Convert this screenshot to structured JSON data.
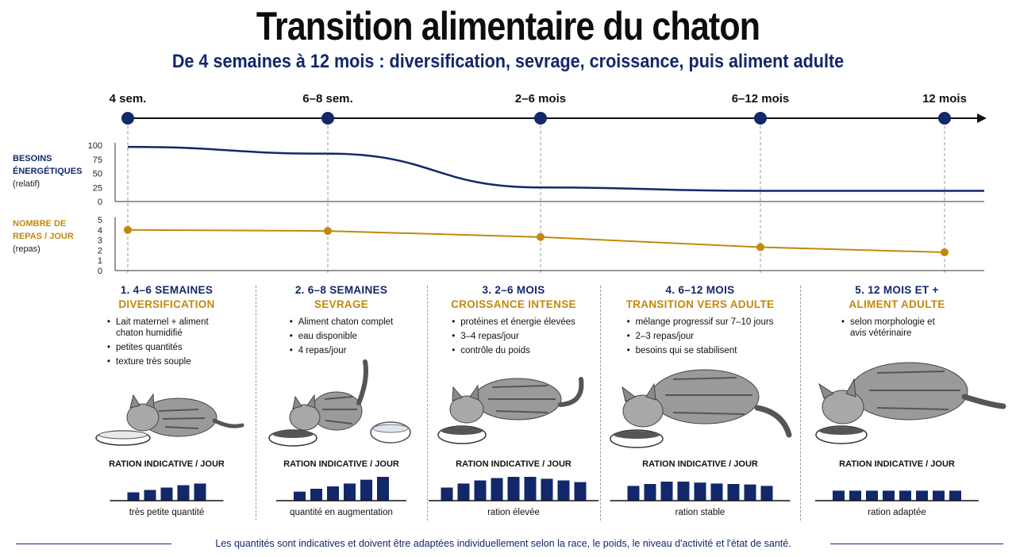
{
  "title": "Transition alimentaire du chaton",
  "subtitle": "De 4 semaines à 12 mois : diversification, sevrage, croissance, puis aliment adulte",
  "colors": {
    "navy": "#13276b",
    "gold": "#c2880e",
    "grid": "#9a9a9a"
  },
  "timeline": {
    "milestones": [
      "4 sem.",
      "6–8 sem.",
      "2–6 mois",
      "6–12 mois",
      "12 mois"
    ]
  },
  "chart_data": [
    {
      "type": "line",
      "title": "",
      "ylabel": "BESOINS ÉNERGÉTIQUES",
      "ylabel_unit": "(relatif)",
      "ylim": [
        0,
        100
      ],
      "yticks": [
        0,
        25,
        50,
        75,
        100
      ],
      "x": [
        "4 sem.",
        "6–8 sem.",
        "2–6 mois",
        "6–12 mois",
        "12 mois"
      ],
      "series": [
        {
          "values": [
            97,
            85,
            25,
            19,
            19
          ]
        }
      ],
      "grid": false
    },
    {
      "type": "line",
      "title": "",
      "ylabel": "NOMBRE DE REPAS / JOUR",
      "ylabel_unit": "(repas)",
      "ylim": [
        0,
        5
      ],
      "yticks": [
        0,
        1,
        2,
        3,
        4,
        5
      ],
      "x": [
        "4 sem.",
        "6–8 sem.",
        "2–6 mois",
        "6–12 mois",
        "12 mois"
      ],
      "series": [
        {
          "values": [
            4.0,
            3.9,
            3.3,
            2.3,
            1.8
          ]
        }
      ],
      "grid": false
    }
  ],
  "stages": [
    {
      "heading": "1. 4–6 SEMAINES",
      "phase": "DIVERSIFICATION",
      "bullets": [
        "Lait maternel + aliment chaton humidifié",
        "petites quantités",
        "texture très souple"
      ],
      "ration_title": "RATION INDICATIVE / JOUR",
      "ration_levels": [
        0.35,
        0.45,
        0.55,
        0.65,
        0.72
      ],
      "caption": "très petite quantité"
    },
    {
      "heading": "2. 6–8 SEMAINES",
      "phase": "SEVRAGE",
      "bullets": [
        "Aliment chaton complet",
        "eau disponible",
        "4 repas/jour"
      ],
      "ration_title": "RATION INDICATIVE / JOUR",
      "ration_levels": [
        0.38,
        0.5,
        0.6,
        0.72,
        0.88,
        1.0
      ],
      "caption": "quantité en augmentation"
    },
    {
      "heading": "3. 2–6 MOIS",
      "phase": "CROISSANCE INTENSE",
      "bullets": [
        "protéines et énergie élevées",
        "3–4 repas/jour",
        "contrôle du poids"
      ],
      "ration_title": "RATION INDICATIVE / JOUR",
      "ration_levels": [
        0.55,
        0.72,
        0.85,
        0.95,
        1.0,
        1.0,
        0.92,
        0.85,
        0.78
      ],
      "caption": "ration élevée"
    },
    {
      "heading": "4. 6–12 MOIS",
      "phase": "TRANSITION VERS ADULTE",
      "bullets": [
        "mélange progressif sur 7–10 jours",
        "2–3 repas/jour",
        "besoins qui se stabilisent"
      ],
      "ration_title": "RATION INDICATIVE / JOUR",
      "ration_levels": [
        0.62,
        0.7,
        0.8,
        0.8,
        0.76,
        0.72,
        0.7,
        0.68,
        0.62
      ],
      "caption": "ration stable"
    },
    {
      "heading": "5. 12 MOIS ET +",
      "phase": "ALIMENT ADULTE",
      "bullets": [
        "selon morphologie et avis vétérinaire"
      ],
      "ration_title": "RATION INDICATIVE / JOUR",
      "ration_levels": [
        0.42,
        0.42,
        0.42,
        0.42,
        0.42,
        0.42,
        0.42,
        0.42
      ],
      "caption": "ration adaptée"
    }
  ],
  "footer": "Les quantités sont indicatives et doivent être adaptées individuellement selon la race, le poids, le niveau d'activité et l'état de santé."
}
